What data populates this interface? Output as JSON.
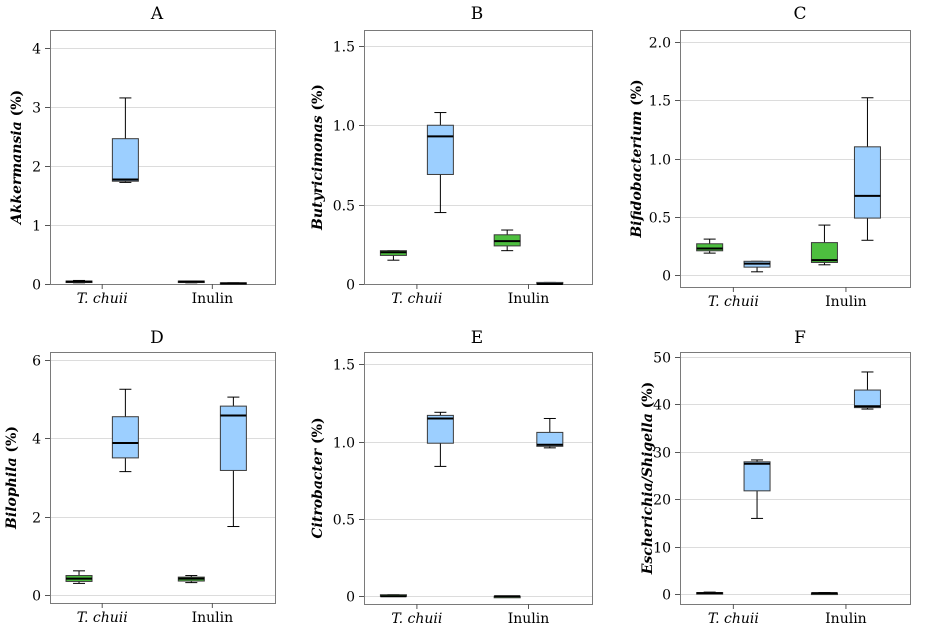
{
  "colors": {
    "control": "#4dbf3f",
    "treated": "#9ccfff"
  },
  "chart_data": [
    {
      "type": "box",
      "title": "A",
      "ylabel_italic": "Akkermansia",
      "ylabel_unit": " (%)",
      "ylim": [
        0,
        4.3
      ],
      "yticks": [
        0,
        1,
        2,
        3,
        4
      ],
      "ytick_labels": [
        "0",
        "1",
        "2",
        "3",
        "4"
      ],
      "categories": [
        {
          "label": "T. chuii",
          "italic": true,
          "boxes": [
            {
              "series": "control",
              "min": 0.02,
              "q1": 0.03,
              "median": 0.04,
              "q3": 0.05,
              "max": 0.06
            },
            {
              "series": "treated",
              "min": 1.72,
              "q1": 1.74,
              "median": 1.77,
              "q3": 2.46,
              "max": 3.15
            }
          ]
        },
        {
          "label": "Inulin",
          "italic": false,
          "boxes": [
            {
              "series": "control",
              "min": 0.02,
              "q1": 0.03,
              "median": 0.04,
              "q3": 0.05,
              "max": 0.05
            },
            {
              "series": "treated",
              "min": 0.0,
              "q1": 0.01,
              "median": 0.01,
              "q3": 0.02,
              "max": 0.02
            }
          ]
        }
      ]
    },
    {
      "type": "box",
      "title": "B",
      "ylabel_italic": "Butyricimonas",
      "ylabel_unit": " (%)",
      "ylim": [
        0,
        1.6
      ],
      "yticks": [
        0,
        0.5,
        1.0,
        1.5
      ],
      "ytick_labels": [
        "0",
        "0.5",
        "1.0",
        "1.5"
      ],
      "categories": [
        {
          "label": "T. chuii",
          "italic": true,
          "boxes": [
            {
              "series": "control",
              "min": 0.15,
              "q1": 0.18,
              "median": 0.2,
              "q3": 0.21,
              "max": 0.21
            },
            {
              "series": "treated",
              "min": 0.45,
              "q1": 0.69,
              "median": 0.93,
              "q3": 1.0,
              "max": 1.08
            }
          ]
        },
        {
          "label": "Inulin",
          "italic": false,
          "boxes": [
            {
              "series": "control",
              "min": 0.21,
              "q1": 0.24,
              "median": 0.27,
              "q3": 0.31,
              "max": 0.34
            },
            {
              "series": "treated",
              "min": 0.0,
              "q1": 0.0,
              "median": 0.0,
              "q3": 0.01,
              "max": 0.01
            }
          ]
        }
      ]
    },
    {
      "type": "box",
      "title": "C",
      "ylabel_italic": "Bifidobacterium",
      "ylabel_unit": " (%)",
      "ylim": [
        -0.1,
        2.1
      ],
      "yticks": [
        0,
        0.5,
        1.0,
        1.5,
        2.0
      ],
      "ytick_labels": [
        "0",
        "0.5",
        "1.0",
        "1.5",
        "2.0"
      ],
      "categories": [
        {
          "label": "T. chuii",
          "italic": true,
          "boxes": [
            {
              "series": "control",
              "min": 0.19,
              "q1": 0.21,
              "median": 0.23,
              "q3": 0.27,
              "max": 0.31
            },
            {
              "series": "treated",
              "min": 0.03,
              "q1": 0.07,
              "median": 0.1,
              "q3": 0.12,
              "max": 0.12
            }
          ]
        },
        {
          "label": "Inulin",
          "italic": false,
          "boxes": [
            {
              "series": "control",
              "min": 0.09,
              "q1": 0.11,
              "median": 0.13,
              "q3": 0.28,
              "max": 0.43
            },
            {
              "series": "treated",
              "min": 0.3,
              "q1": 0.49,
              "median": 0.68,
              "q3": 1.1,
              "max": 1.52
            }
          ]
        }
      ]
    },
    {
      "type": "box",
      "title": "D",
      "ylabel_italic": "Bilophila",
      "ylabel_unit": " (%)",
      "ylim": [
        -0.2,
        6.2
      ],
      "yticks": [
        0,
        2,
        4,
        6
      ],
      "ytick_labels": [
        "0",
        "2",
        "4",
        "6"
      ],
      "categories": [
        {
          "label": "T. chuii",
          "italic": true,
          "boxes": [
            {
              "series": "control",
              "min": 0.3,
              "q1": 0.35,
              "median": 0.42,
              "q3": 0.5,
              "max": 0.62
            },
            {
              "series": "treated",
              "min": 3.15,
              "q1": 3.5,
              "median": 3.88,
              "q3": 4.55,
              "max": 5.25
            }
          ]
        },
        {
          "label": "Inulin",
          "italic": false,
          "boxes": [
            {
              "series": "control",
              "min": 0.32,
              "q1": 0.36,
              "median": 0.42,
              "q3": 0.46,
              "max": 0.5
            },
            {
              "series": "treated",
              "min": 1.75,
              "q1": 3.18,
              "median": 4.58,
              "q3": 4.82,
              "max": 5.05
            }
          ]
        }
      ]
    },
    {
      "type": "box",
      "title": "E",
      "ylabel_italic": "Citrobacter",
      "ylabel_unit": " (%)",
      "ylim": [
        -0.05,
        1.58
      ],
      "yticks": [
        0,
        0.5,
        1.0,
        1.5
      ],
      "ytick_labels": [
        "0",
        "0.5",
        "1.0",
        "1.5"
      ],
      "categories": [
        {
          "label": "T. chuii",
          "italic": true,
          "boxes": [
            {
              "series": "control",
              "min": 0.0,
              "q1": 0.0,
              "median": 0.0,
              "q3": 0.01,
              "max": 0.01
            },
            {
              "series": "treated",
              "min": 0.84,
              "q1": 0.99,
              "median": 1.15,
              "q3": 1.17,
              "max": 1.19
            }
          ]
        },
        {
          "label": "Inulin",
          "italic": false,
          "boxes": [
            {
              "series": "control",
              "min": 0.0,
              "q1": 0.0,
              "median": 0.0,
              "q3": 0.0,
              "max": 0.0
            },
            {
              "series": "treated",
              "min": 0.96,
              "q1": 0.97,
              "median": 0.98,
              "q3": 1.06,
              "max": 1.15
            }
          ]
        }
      ]
    },
    {
      "type": "box",
      "title": "F",
      "ylabel_italic": "Escherichia/Shigella",
      "ylabel_unit": " (%)",
      "ylim": [
        -2,
        51
      ],
      "yticks": [
        0,
        10,
        20,
        30,
        40,
        50
      ],
      "ytick_labels": [
        "0",
        "10",
        "20",
        "30",
        "40",
        "50"
      ],
      "categories": [
        {
          "label": "T. chuii",
          "italic": true,
          "boxes": [
            {
              "series": "control",
              "min": 0.1,
              "q1": 0.2,
              "median": 0.3,
              "q3": 0.4,
              "max": 0.5
            },
            {
              "series": "treated",
              "min": 16.0,
              "q1": 21.8,
              "median": 27.5,
              "q3": 27.9,
              "max": 28.3
            }
          ]
        },
        {
          "label": "Inulin",
          "italic": false,
          "boxes": [
            {
              "series": "control",
              "min": 0.1,
              "q1": 0.2,
              "median": 0.3,
              "q3": 0.3,
              "max": 0.4
            },
            {
              "series": "treated",
              "min": 39.0,
              "q1": 39.3,
              "median": 39.6,
              "q3": 43.0,
              "max": 46.8
            }
          ]
        }
      ]
    }
  ]
}
